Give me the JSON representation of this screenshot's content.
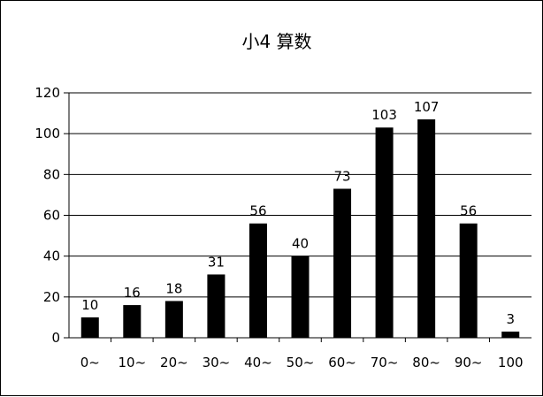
{
  "chart_data": {
    "type": "bar",
    "title": "小4  算数",
    "xlabel": "",
    "ylabel": "",
    "categories": [
      "0~",
      "10~",
      "20~",
      "30~",
      "40~",
      "50~",
      "60~",
      "70~",
      "80~",
      "90~",
      "100"
    ],
    "values": [
      10,
      16,
      18,
      31,
      56,
      40,
      73,
      103,
      107,
      56,
      3
    ],
    "ylim": [
      0,
      120
    ],
    "yticks": [
      0,
      20,
      40,
      60,
      80,
      100,
      120
    ],
    "grid": true,
    "legend": "none",
    "bar_color": "#000000",
    "background": "#ffffff"
  }
}
